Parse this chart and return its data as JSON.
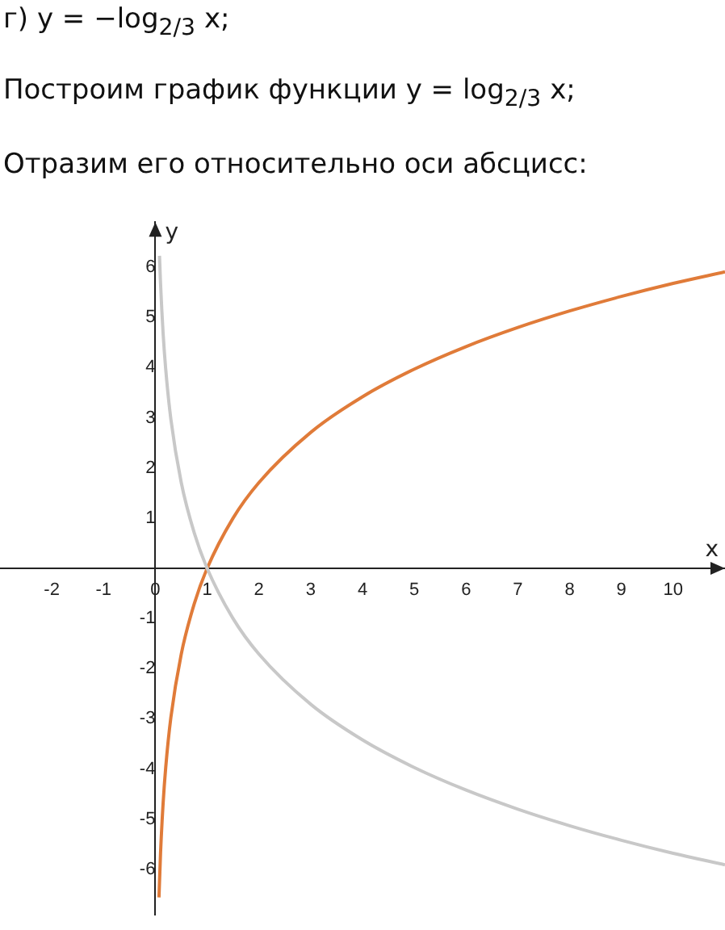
{
  "chart_data": {
    "type": "line",
    "title": "г) y = −log$_{2/3}$ x;",
    "subtitle": "Построим график функции y = log$_{2/3}$ x;",
    "annotations": [
      "Отразим его относительно оси абсцисс:"
    ],
    "xlabel": "x",
    "ylabel": "y",
    "xlim": [
      -3,
      11
    ],
    "ylim": [
      -6.9,
      6.9
    ],
    "xticks": [
      -2,
      -1,
      0,
      1,
      2,
      3,
      4,
      5,
      6,
      7,
      8,
      9,
      10
    ],
    "yticks": [
      -6,
      -5,
      -4,
      -3,
      -2,
      -1,
      1,
      2,
      3,
      4,
      5,
      6
    ],
    "grid": false,
    "legend": false,
    "marker": "none",
    "line_style": "solid",
    "series": [
      {
        "color": "#c8c8c8",
        "x": [
          0.08,
          0.1,
          0.15,
          0.2,
          0.3,
          0.5,
          0.75,
          1,
          1.5,
          2,
          3,
          4,
          5,
          6,
          7,
          8,
          9,
          10,
          11
        ],
        "values": [
          6.23,
          5.68,
          4.68,
          3.97,
          2.97,
          1.71,
          0.71,
          0,
          -1,
          -1.71,
          -2.71,
          -3.42,
          -3.97,
          -4.42,
          -4.8,
          -5.13,
          -5.42,
          -5.68,
          -5.91
        ]
      },
      {
        "color": "#e07b39",
        "x": [
          0.07,
          0.1,
          0.15,
          0.2,
          0.3,
          0.5,
          0.75,
          1,
          1.5,
          2,
          3,
          4,
          5,
          6,
          7,
          8,
          9,
          10,
          11
        ],
        "values": [
          -6.56,
          -5.68,
          -4.68,
          -3.97,
          -2.97,
          -1.71,
          -0.71,
          0,
          1,
          1.71,
          2.71,
          3.42,
          3.97,
          4.42,
          4.8,
          5.13,
          5.42,
          5.68,
          5.91
        ]
      }
    ]
  }
}
